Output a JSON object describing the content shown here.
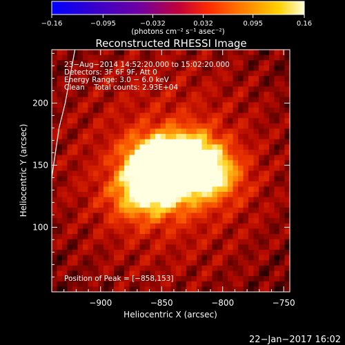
{
  "chart_data": {
    "type": "heatmap",
    "title": "Reconstructed RHESSI Image",
    "xlabel": "Heliocentric X (arcsec)",
    "ylabel": "Heliocentric Y (arcsec)",
    "xlim": [
      -940,
      -745
    ],
    "ylim": [
      48,
      243
    ],
    "x_ticks": [
      -900,
      -850,
      -800,
      -750
    ],
    "y_ticks": [
      100,
      150,
      200
    ],
    "x_tick_labels": [
      "−900",
      "−850",
      "−800",
      "−750"
    ],
    "y_tick_labels": [
      "100",
      "150",
      "200"
    ],
    "colorbar": {
      "range": [
        -0.16,
        0.16
      ],
      "ticks": [
        -0.16,
        -0.095,
        -0.032,
        0.032,
        0.095,
        0.16
      ],
      "tick_labels": [
        "−0.16",
        "−0.095",
        "−0.032",
        "0.032",
        "0.095",
        "0.16"
      ],
      "unit_label": "(photons cm⁻² s⁻¹ asec⁻²)",
      "colormap": "black-body / hot"
    },
    "annotations": [
      "23−Aug−2014 14:52:20.000 to 15:02:20.000",
      "Detectors: 3F 6F 9F, Att 0",
      "Energy Range: 3.0 − 6.0 keV",
      "Clean    Total counts: 2.93E+04"
    ],
    "peak_label": "Position of Peak = [−858,153]",
    "peak": [
      -858,
      153
    ],
    "sources": [
      {
        "x": -858,
        "y": 153,
        "intensity": 0.16
      },
      {
        "x": -828,
        "y": 158,
        "intensity": 0.13
      },
      {
        "x": -808,
        "y": 142,
        "intensity": 0.11
      },
      {
        "x": -842,
        "y": 131,
        "intensity": 0.095
      },
      {
        "x": -870,
        "y": 126,
        "intensity": 0.095
      }
    ],
    "limb": [
      [
        -921,
        243
      ],
      [
        -929,
        200
      ],
      [
        -934,
        180
      ],
      [
        -940,
        140
      ]
    ],
    "timestamp": "22−Jan−2017 16:02"
  }
}
